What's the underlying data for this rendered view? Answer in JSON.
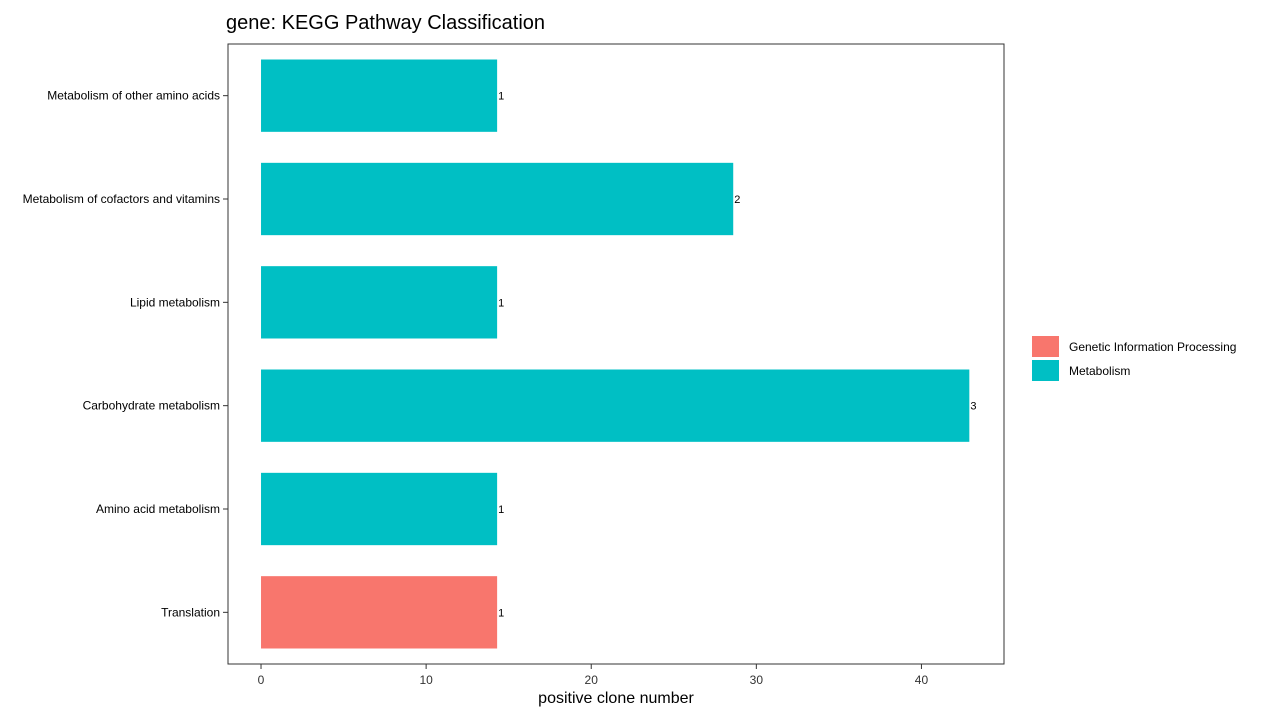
{
  "chart_data": {
    "type": "bar",
    "orientation": "horizontal",
    "title": "gene: KEGG Pathway Classification",
    "xlabel": "positive clone number",
    "ylabel": "",
    "xlim": [
      -2,
      45
    ],
    "xticks": [
      0,
      10,
      20,
      30,
      40
    ],
    "grid": false,
    "legend_position": "right",
    "categories": [
      "Metabolism of other amino acids",
      "Metabolism of cofactors and vitamins",
      "Lipid metabolism",
      "Carbohydrate metabolism",
      "Amino acid metabolism",
      "Translation"
    ],
    "values": [
      14.3,
      28.6,
      14.3,
      42.9,
      14.3,
      14.3
    ],
    "labels": [
      "1",
      "2",
      "1",
      "3",
      "1",
      "1"
    ],
    "groups": [
      "Metabolism",
      "Metabolism",
      "Metabolism",
      "Metabolism",
      "Metabolism",
      "Genetic Information Processing"
    ],
    "legend": [
      {
        "name": "Genetic Information Processing",
        "color": "#F8766D"
      },
      {
        "name": "Metabolism",
        "color": "#00BFC4"
      }
    ]
  }
}
